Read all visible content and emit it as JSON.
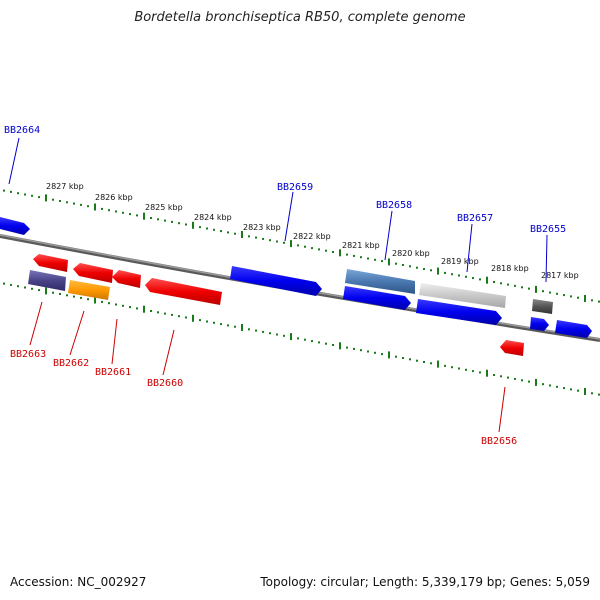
{
  "title": "Bordetella bronchiseptica RB50, complete genome",
  "footer": {
    "accession": "Accession: NC_002927",
    "summary": "Topology: circular; Length: 5,339,179 bp; Genes: 5,059"
  },
  "colors": {
    "forward_label": "#0000cc",
    "reverse_label": "#cc0000",
    "tick": "#1a7a1a",
    "backbone": "#808080"
  },
  "kbp_labels": [
    "2827 kbp",
    "2826 kbp",
    "2825 kbp",
    "2824 kbp",
    "2823 kbp",
    "2822 kbp",
    "2821 kbp",
    "2820 kbp",
    "2819 kbp",
    "2818 kbp",
    "2817 kbp"
  ],
  "forward_genes": [
    "BB2664",
    "BB2659",
    "BB2658",
    "BB2657",
    "BB2655"
  ],
  "reverse_genes": [
    "BB2663",
    "BB2662",
    "BB2661",
    "BB2660",
    "BB2656"
  ]
}
